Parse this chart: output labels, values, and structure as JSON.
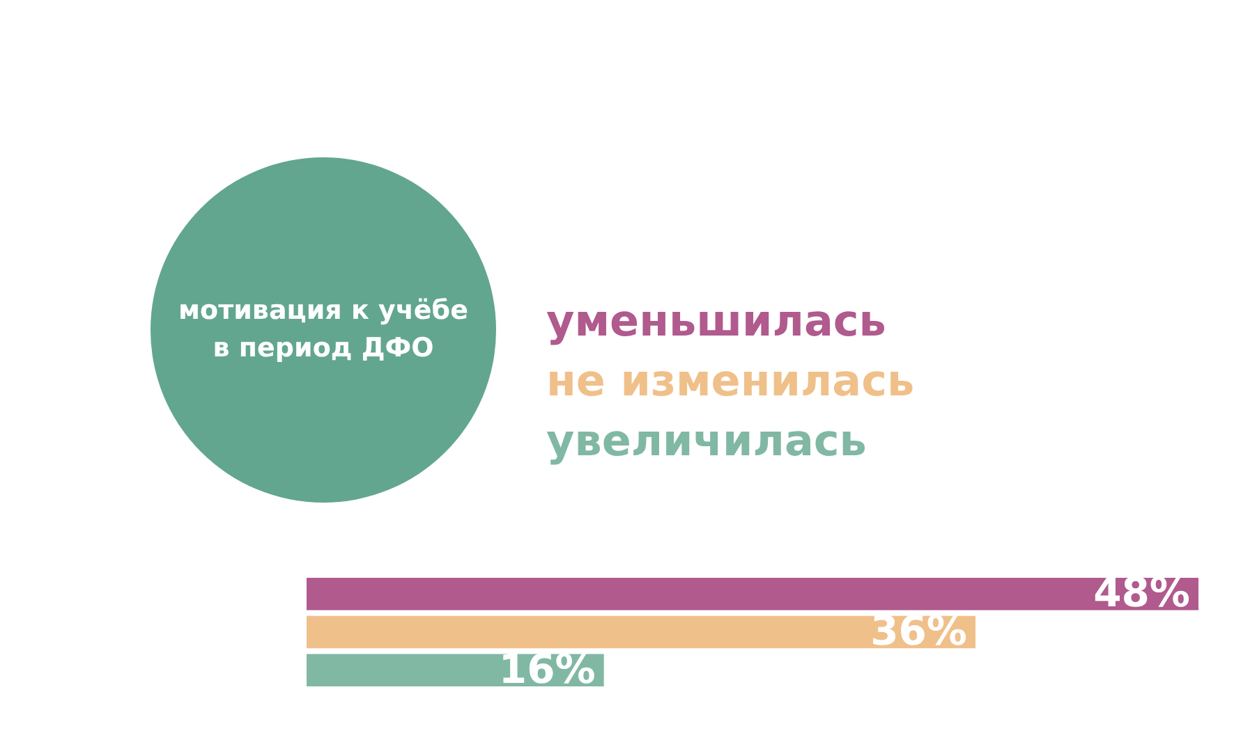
{
  "chart_data": {
    "type": "bar",
    "orientation": "horizontal",
    "title": "мотивация к учёбе в период ДФО",
    "categories": [
      null,
      null,
      null
    ],
    "values": [
      48,
      36,
      16
    ],
    "value_labels": [
      "48%",
      "36%",
      "16%"
    ],
    "colors": [
      "#b05a8e",
      "#f0c08a",
      "#80b8a4"
    ],
    "annotations": [
      "уменьшилась",
      "не изменилась",
      "увеличилась"
    ]
  }
}
